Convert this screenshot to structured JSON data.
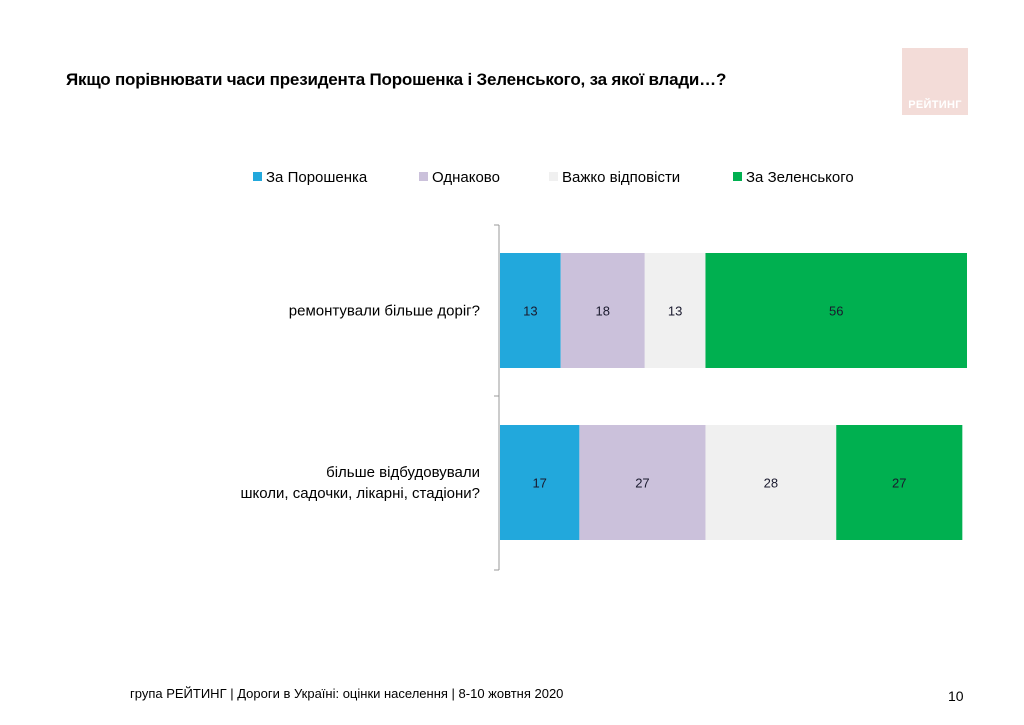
{
  "title": "Якщо порівнювати часи президента Порошенка і Зеленського, за якої влади…?",
  "logo_text": "РЕЙТИНГ",
  "footer": "група РЕЙТИНГ | Дороги в Україні: оцінки населення | 8-10 жовтня  2020",
  "page_number": "10",
  "chart_data": {
    "type": "bar",
    "orientation": "horizontal",
    "stacked": true,
    "legend_position": "top",
    "xlim": [
      0,
      100
    ],
    "grid": false,
    "categories": [
      [
        "ремонтували більше доріг?"
      ],
      [
        "більше відбудовували",
        "школи, садочки, лікарні, стадіони?"
      ]
    ],
    "series": [
      {
        "name": "За Порошенка",
        "color": "#22a8dc",
        "values": [
          13,
          17
        ]
      },
      {
        "name": "Однаково",
        "color": "#cbc1db",
        "values": [
          18,
          27
        ]
      },
      {
        "name": "Важко відповісти",
        "color": "#f0f0f0",
        "values": [
          13,
          28
        ]
      },
      {
        "name": "За Зеленського",
        "color": "#00b050",
        "values": [
          56,
          27
        ]
      }
    ]
  }
}
